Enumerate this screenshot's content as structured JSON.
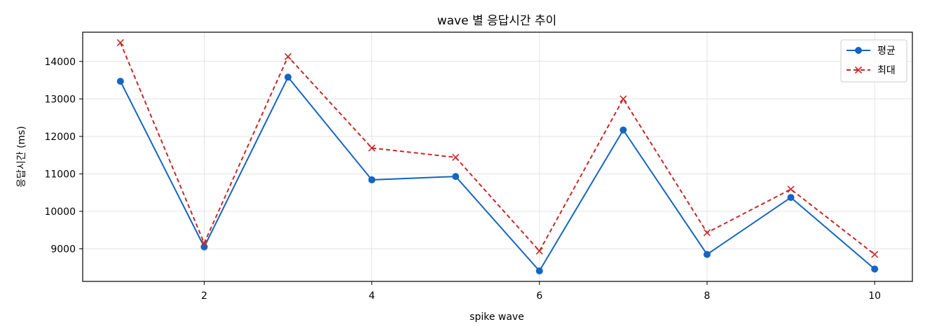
{
  "chart_data": {
    "type": "line",
    "title": "wave 별 응답시간 추이",
    "xlabel": "spike wave",
    "ylabel": "응답시간 (ms)",
    "x": [
      1,
      2,
      3,
      4,
      5,
      6,
      7,
      8,
      9,
      10
    ],
    "xlim": [
      0.55,
      10.45
    ],
    "ylim": [
      8130,
      14780
    ],
    "xticks": [
      2,
      4,
      6,
      8,
      10
    ],
    "yticks": [
      9000,
      10000,
      11000,
      12000,
      13000,
      14000
    ],
    "grid": true,
    "legend_position": "top-right",
    "series": [
      {
        "name": "평균",
        "color": "#1565c0",
        "line_style": "solid",
        "marker": "circle",
        "values": [
          13470,
          9050,
          13580,
          10840,
          10930,
          8410,
          12170,
          8850,
          10370,
          8460
        ]
      },
      {
        "name": "최대",
        "color": "#c62828",
        "line_style": "dashed",
        "marker": "x",
        "values": [
          14500,
          9150,
          14130,
          11690,
          11440,
          8940,
          13000,
          9430,
          10590,
          8850
        ]
      }
    ]
  }
}
